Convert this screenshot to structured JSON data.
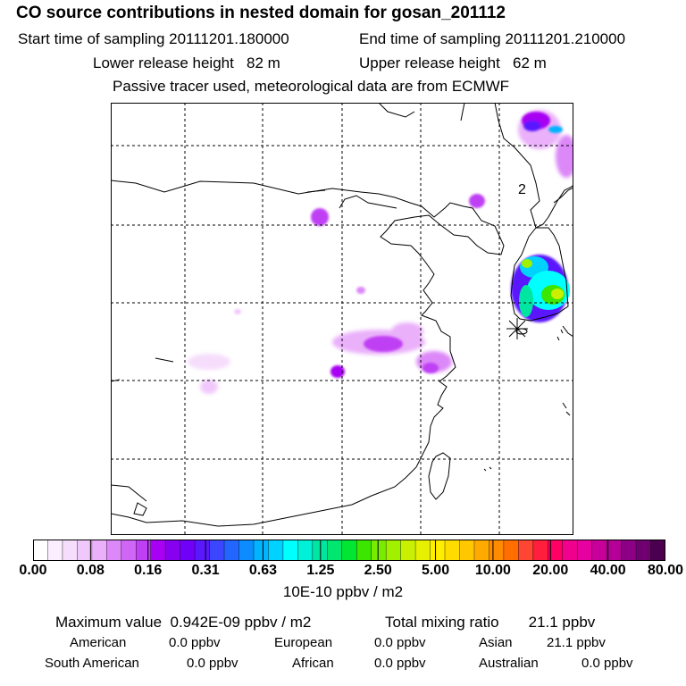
{
  "title": "CO  source contributions in nested domain for gosan_201112",
  "header": {
    "start_label": "Start time of sampling",
    "start_value": "20111201.180000",
    "end_label": "End time of sampling",
    "end_value": "20111201.210000",
    "lower_label": "Lower release height",
    "lower_value": "82 m",
    "upper_label": "Upper release height",
    "upper_value": "62 m",
    "note": "Passive tracer used, meteorological data are from ECMWF"
  },
  "map": {
    "label_2": "2",
    "marker": "receptor-star"
  },
  "colorbar": {
    "ticks": [
      "0.00",
      "0.08",
      "0.16",
      "0.31",
      "0.63",
      "1.25",
      "2.50",
      "5.00",
      "10.00",
      "20.00",
      "40.00",
      "80.00"
    ],
    "units": "10E-10 ppbv / m2",
    "colors": [
      "#ffffff",
      "#fbeefe",
      "#f6ddfc",
      "#f1c8fb",
      "#eab0fa",
      "#dc88f8",
      "#cf66f6",
      "#bf40f4",
      "#a800f2",
      "#8800f0",
      "#7000f8",
      "#5a18ff",
      "#3c46ff",
      "#2266ff",
      "#0c8cff",
      "#00b4ff",
      "#00d2ff",
      "#00ffff",
      "#00f0d8",
      "#00e6a0",
      "#00e66e",
      "#00e632",
      "#3ce600",
      "#78eb00",
      "#a0f000",
      "#c8f000",
      "#e6f000",
      "#ffee00",
      "#ffdc00",
      "#ffc800",
      "#ffaa00",
      "#ff8c00",
      "#ff6e00",
      "#ff4632",
      "#ff1e3c",
      "#ff0064",
      "#f0008c",
      "#e600a0",
      "#c8009a",
      "#b40096",
      "#8c0086",
      "#6e0070",
      "#4b004f"
    ]
  },
  "stats": {
    "max_label": "Maximum value",
    "max_value": "0.942E-09 ppbv / m2",
    "total_label": "Total mixing ratio",
    "total_value": "21.1 ppbv",
    "american_label": "American",
    "american_value": "0.0 ppbv",
    "european_label": "European",
    "european_value": "0.0 ppbv",
    "asian_label": "Asian",
    "asian_value": "21.1 ppbv",
    "south_american_label": "South American",
    "south_american_value": "0.0 ppbv",
    "african_label": "African",
    "african_value": "0.0 ppbv",
    "australian_label": "Australian",
    "australian_value": "0.0 ppbv"
  }
}
